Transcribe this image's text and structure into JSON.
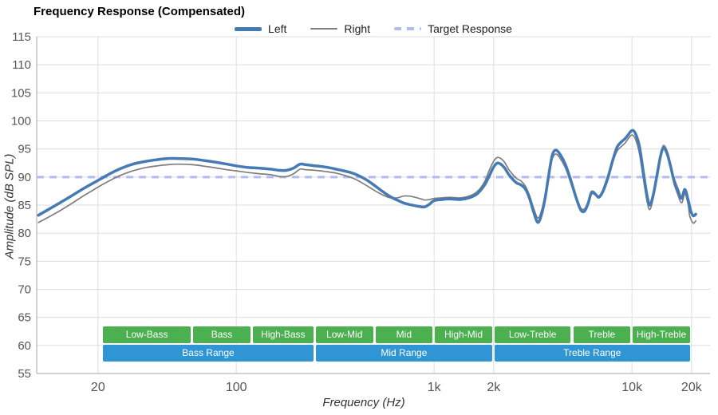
{
  "title": "Frequency Response (Compensated)",
  "legend": [
    {
      "label": "Left",
      "color": "#467ab5",
      "style": "solid",
      "width": 5
    },
    {
      "label": "Right",
      "color": "#7e7e7e",
      "style": "solid",
      "width": 2
    },
    {
      "label": "Target Response",
      "color": "#b3bbf2",
      "style": "dashed",
      "width": 4
    }
  ],
  "chart_data": {
    "type": "line",
    "title": "Frequency Response (Compensated)",
    "xlabel": "Frequency (Hz)",
    "ylabel": "Amplitude (dB SPL)",
    "x_scale": "log",
    "grid": true,
    "legend_position": "top",
    "xlim": [
      9.8,
      24800
    ],
    "ylim": [
      55,
      115
    ],
    "y_ticks": [
      55,
      60,
      65,
      70,
      75,
      80,
      85,
      90,
      95,
      100,
      105,
      110,
      115
    ],
    "x_ticks": [
      {
        "value": 20,
        "label": "20"
      },
      {
        "value": 100,
        "label": "100"
      },
      {
        "value": 1000,
        "label": "1k"
      },
      {
        "value": 2000,
        "label": "2k"
      },
      {
        "value": 10000,
        "label": "10k"
      },
      {
        "value": 20000,
        "label": "20k"
      }
    ],
    "target": {
      "label": "Target Response",
      "value": 90,
      "color": "#b3bbf2"
    },
    "colors": {
      "grid": "#dcdcdc",
      "axis": "#a6a6a6",
      "tick_text": "#555555",
      "sub_band": "#4caf50",
      "range_band": "#3095d5"
    },
    "series": [
      {
        "name": "Left",
        "color": "#467ab5",
        "width": 3.5,
        "points": [
          [
            10,
            83.2
          ],
          [
            12,
            84.8
          ],
          [
            14,
            86.2
          ],
          [
            17,
            88.0
          ],
          [
            20,
            89.4
          ],
          [
            23,
            90.6
          ],
          [
            26,
            91.5
          ],
          [
            30,
            92.3
          ],
          [
            35,
            92.8
          ],
          [
            40,
            93.1
          ],
          [
            45,
            93.3
          ],
          [
            50,
            93.3
          ],
          [
            60,
            93.2
          ],
          [
            70,
            92.9
          ],
          [
            80,
            92.6
          ],
          [
            90,
            92.3
          ],
          [
            100,
            92.0
          ],
          [
            115,
            91.7
          ],
          [
            130,
            91.6
          ],
          [
            150,
            91.4
          ],
          [
            165,
            91.2
          ],
          [
            180,
            91.2
          ],
          [
            195,
            91.6
          ],
          [
            210,
            92.3
          ],
          [
            225,
            92.2
          ],
          [
            250,
            92.0
          ],
          [
            280,
            91.8
          ],
          [
            320,
            91.4
          ],
          [
            360,
            91.0
          ],
          [
            400,
            90.5
          ],
          [
            450,
            89.6
          ],
          [
            500,
            88.5
          ],
          [
            550,
            87.4
          ],
          [
            600,
            86.5
          ],
          [
            650,
            85.9
          ],
          [
            700,
            85.4
          ],
          [
            750,
            85.1
          ],
          [
            800,
            84.9
          ],
          [
            860,
            84.7
          ],
          [
            900,
            84.7
          ],
          [
            950,
            85.2
          ],
          [
            1000,
            85.8
          ],
          [
            1100,
            86.0
          ],
          [
            1200,
            86.1
          ],
          [
            1350,
            86.0
          ],
          [
            1500,
            86.3
          ],
          [
            1650,
            87.0
          ],
          [
            1800,
            88.6
          ],
          [
            1900,
            90.2
          ],
          [
            2000,
            91.8
          ],
          [
            2100,
            92.5
          ],
          [
            2250,
            91.8
          ],
          [
            2400,
            90.3
          ],
          [
            2600,
            89.0
          ],
          [
            2750,
            88.6
          ],
          [
            2900,
            87.8
          ],
          [
            3050,
            86.0
          ],
          [
            3200,
            83.5
          ],
          [
            3350,
            81.9
          ],
          [
            3500,
            83.5
          ],
          [
            3650,
            86.5
          ],
          [
            3800,
            90.5
          ],
          [
            3950,
            93.8
          ],
          [
            4100,
            94.8
          ],
          [
            4300,
            94.2
          ],
          [
            4600,
            92.3
          ],
          [
            4900,
            89.5
          ],
          [
            5200,
            86.5
          ],
          [
            5500,
            84.2
          ],
          [
            5750,
            83.9
          ],
          [
            6000,
            85.3
          ],
          [
            6250,
            87.3
          ],
          [
            6550,
            86.9
          ],
          [
            6800,
            86.4
          ],
          [
            7100,
            87.3
          ],
          [
            7500,
            89.5
          ],
          [
            8000,
            93.0
          ],
          [
            8400,
            95.3
          ],
          [
            8800,
            96.2
          ],
          [
            9200,
            96.8
          ],
          [
            9600,
            97.6
          ],
          [
            10000,
            98.3
          ],
          [
            10400,
            97.8
          ],
          [
            10900,
            95.5
          ],
          [
            11400,
            91.0
          ],
          [
            11900,
            86.8
          ],
          [
            12300,
            85.0
          ],
          [
            12800,
            86.8
          ],
          [
            13300,
            89.8
          ],
          [
            13900,
            93.5
          ],
          [
            14400,
            95.2
          ],
          [
            15000,
            94.3
          ],
          [
            15600,
            92.2
          ],
          [
            16200,
            89.8
          ],
          [
            17000,
            87.8
          ],
          [
            17800,
            86.2
          ],
          [
            18500,
            87.8
          ],
          [
            19200,
            86.0
          ],
          [
            19800,
            84.0
          ],
          [
            20400,
            83.1
          ],
          [
            21000,
            83.4
          ]
        ]
      },
      {
        "name": "Right",
        "color": "#7e7e7e",
        "width": 1.7,
        "points": [
          [
            10,
            81.9
          ],
          [
            12,
            83.4
          ],
          [
            14,
            84.8
          ],
          [
            17,
            86.7
          ],
          [
            20,
            88.2
          ],
          [
            23,
            89.4
          ],
          [
            26,
            90.3
          ],
          [
            30,
            91.1
          ],
          [
            35,
            91.7
          ],
          [
            40,
            92.0
          ],
          [
            45,
            92.2
          ],
          [
            50,
            92.3
          ],
          [
            60,
            92.2
          ],
          [
            70,
            91.9
          ],
          [
            80,
            91.6
          ],
          [
            90,
            91.3
          ],
          [
            100,
            91.1
          ],
          [
            115,
            90.8
          ],
          [
            130,
            90.6
          ],
          [
            150,
            90.4
          ],
          [
            165,
            90.1
          ],
          [
            180,
            90.1
          ],
          [
            195,
            90.6
          ],
          [
            210,
            91.4
          ],
          [
            225,
            91.3
          ],
          [
            250,
            91.2
          ],
          [
            280,
            91.0
          ],
          [
            320,
            90.7
          ],
          [
            360,
            90.2
          ],
          [
            400,
            89.6
          ],
          [
            450,
            88.6
          ],
          [
            500,
            87.6
          ],
          [
            550,
            86.8
          ],
          [
            600,
            86.3
          ],
          [
            650,
            86.3
          ],
          [
            700,
            86.6
          ],
          [
            750,
            86.6
          ],
          [
            800,
            86.4
          ],
          [
            860,
            86.1
          ],
          [
            900,
            85.9
          ],
          [
            950,
            86.0
          ],
          [
            1000,
            86.2
          ],
          [
            1100,
            86.3
          ],
          [
            1200,
            86.4
          ],
          [
            1350,
            86.3
          ],
          [
            1500,
            86.6
          ],
          [
            1650,
            87.4
          ],
          [
            1800,
            89.2
          ],
          [
            1900,
            91.2
          ],
          [
            2000,
            92.8
          ],
          [
            2100,
            93.5
          ],
          [
            2250,
            92.8
          ],
          [
            2400,
            91.2
          ],
          [
            2600,
            89.8
          ],
          [
            2750,
            89.3
          ],
          [
            2900,
            88.3
          ],
          [
            3050,
            86.5
          ],
          [
            3200,
            84.2
          ],
          [
            3350,
            82.7
          ],
          [
            3500,
            84.2
          ],
          [
            3650,
            87.0
          ],
          [
            3800,
            90.8
          ],
          [
            3950,
            93.2
          ],
          [
            4100,
            94.1
          ],
          [
            4300,
            93.5
          ],
          [
            4600,
            91.7
          ],
          [
            4900,
            89.0
          ],
          [
            5200,
            86.2
          ],
          [
            5500,
            84.5
          ],
          [
            5750,
            84.3
          ],
          [
            6000,
            85.6
          ],
          [
            6250,
            87.0
          ],
          [
            6550,
            86.8
          ],
          [
            6800,
            86.6
          ],
          [
            7100,
            87.6
          ],
          [
            7500,
            90.0
          ],
          [
            8000,
            92.8
          ],
          [
            8400,
            94.6
          ],
          [
            8800,
            95.4
          ],
          [
            9200,
            96.0
          ],
          [
            9600,
            96.9
          ],
          [
            10000,
            97.5
          ],
          [
            10400,
            96.8
          ],
          [
            10900,
            94.2
          ],
          [
            11400,
            89.8
          ],
          [
            11900,
            85.8
          ],
          [
            12300,
            84.2
          ],
          [
            12800,
            86.2
          ],
          [
            13300,
            89.5
          ],
          [
            13900,
            93.8
          ],
          [
            14400,
            95.6
          ],
          [
            15000,
            94.8
          ],
          [
            15600,
            92.6
          ],
          [
            16200,
            89.2
          ],
          [
            17000,
            87.0
          ],
          [
            17800,
            85.4
          ],
          [
            18500,
            87.0
          ],
          [
            19200,
            85.2
          ],
          [
            19600,
            83.0
          ],
          [
            20400,
            81.8
          ],
          [
            21000,
            82.2
          ]
        ]
      }
    ],
    "bands": {
      "sub": [
        {
          "label": "Low-Bass",
          "from": 21,
          "to": 60
        },
        {
          "label": "Bass",
          "from": 60,
          "to": 120
        },
        {
          "label": "High-Bass",
          "from": 120,
          "to": 250
        },
        {
          "label": "Low-Mid",
          "from": 250,
          "to": 500
        },
        {
          "label": "Mid",
          "from": 500,
          "to": 1000
        },
        {
          "label": "High-Mid",
          "from": 1000,
          "to": 2000
        },
        {
          "label": "Low-Treble",
          "from": 2000,
          "to": 5000
        },
        {
          "label": "Treble",
          "from": 5000,
          "to": 10000
        },
        {
          "label": "High-Treble",
          "from": 10000,
          "to": 20000
        }
      ],
      "ranges": [
        {
          "label": "Bass Range",
          "from": 21,
          "to": 250
        },
        {
          "label": "Mid Range",
          "from": 250,
          "to": 2000
        },
        {
          "label": "Treble Range",
          "from": 2000,
          "to": 20000
        }
      ]
    }
  }
}
